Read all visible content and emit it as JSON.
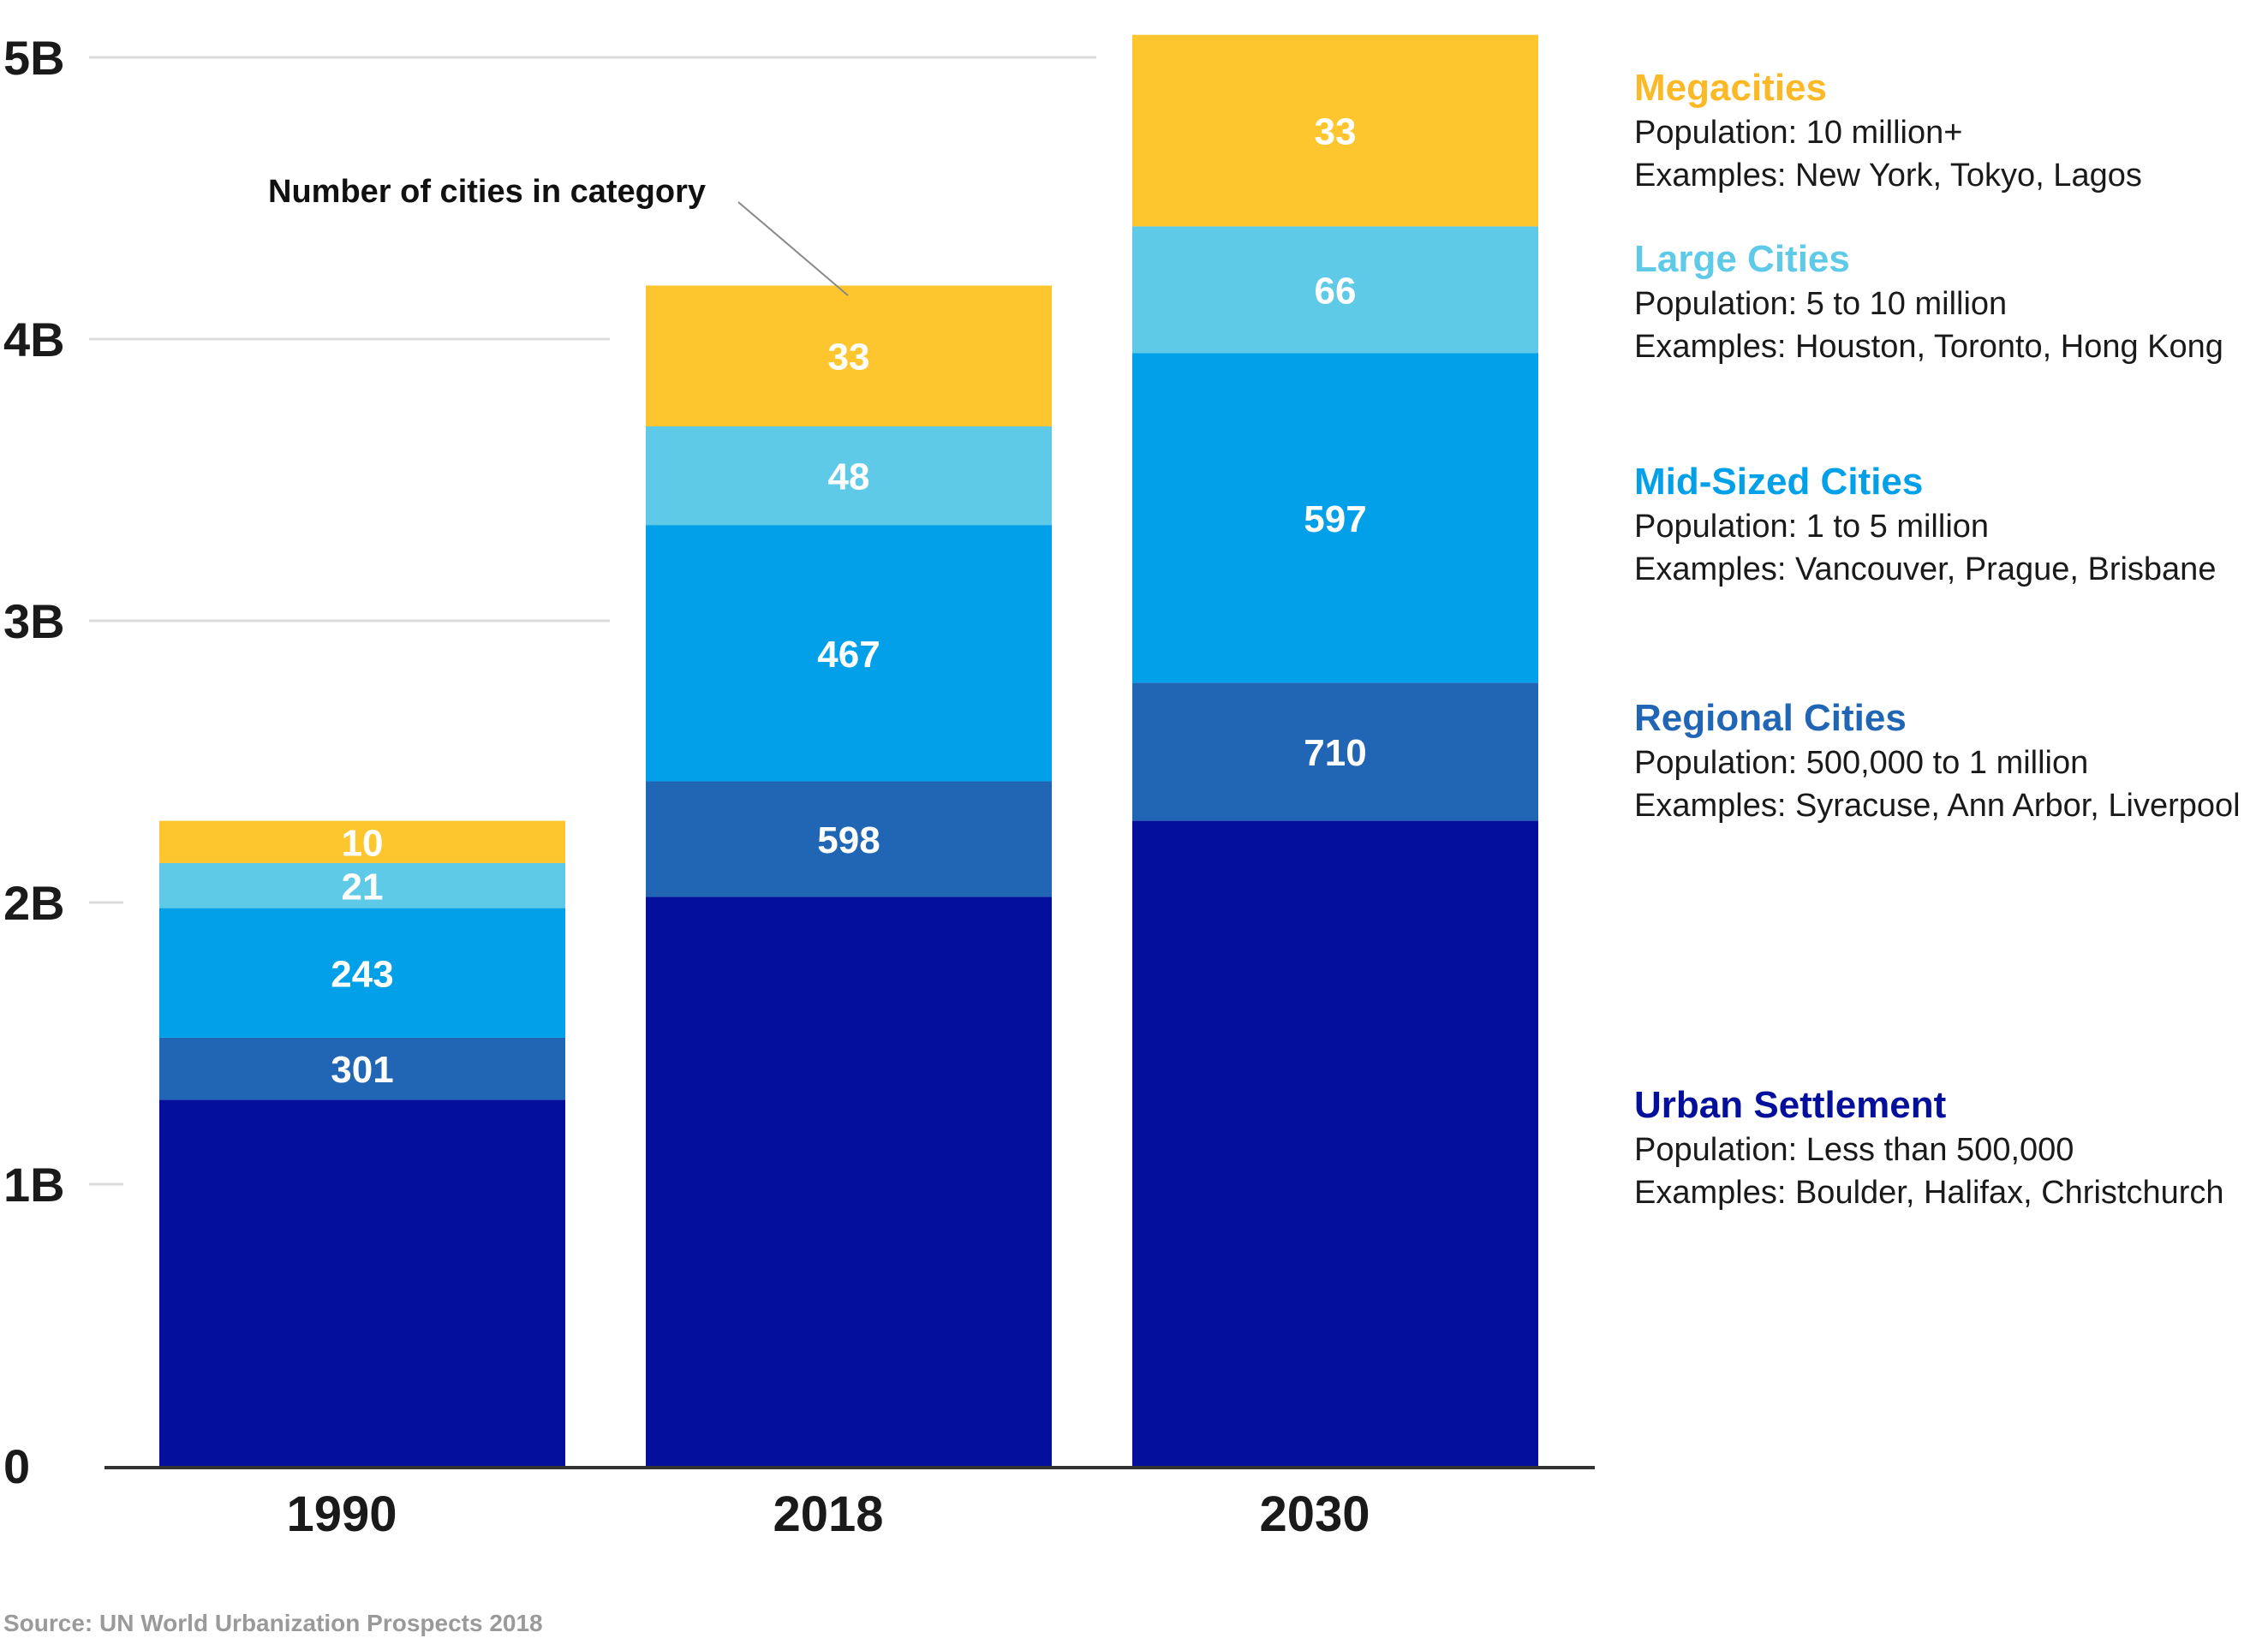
{
  "chart_data": {
    "type": "bar",
    "stacked": true,
    "categories": [
      "1990",
      "2018",
      "2030"
    ],
    "ylim": [
      0,
      5
    ],
    "yticks": [
      0,
      1,
      2,
      3,
      4,
      5
    ],
    "ytick_labels": [
      "0",
      "1B",
      "2B",
      "3B",
      "4B",
      "5B"
    ],
    "grid": true,
    "series": [
      {
        "name": "Urban Settlement",
        "color": "#040f9c",
        "values": [
          1.3,
          2.02,
          2.29
        ],
        "counts": [
          "",
          "",
          ""
        ]
      },
      {
        "name": "Regional Cities",
        "color": "#2166b5",
        "values": [
          0.22,
          0.41,
          0.49
        ],
        "counts": [
          "301",
          "598",
          "710"
        ]
      },
      {
        "name": "Mid-Sized Cities",
        "color": "#02a0e8",
        "values": [
          0.46,
          0.91,
          1.17
        ],
        "counts": [
          "243",
          "467",
          "597"
        ]
      },
      {
        "name": "Large Cities",
        "color": "#5ecae8",
        "values": [
          0.16,
          0.35,
          0.45
        ],
        "counts": [
          "21",
          "48",
          "66"
        ]
      },
      {
        "name": "Megacities",
        "color": "#fdc52e",
        "values": [
          0.15,
          0.5,
          0.68
        ],
        "counts": [
          "10",
          "33",
          "33"
        ]
      }
    ],
    "annotation": "Number of cities in category",
    "source": "Source: UN World Urbanization Prospects 2018"
  },
  "legend": [
    {
      "title": "Megacities",
      "color": "#fbb927",
      "population": "Population: 10 million+",
      "examples": "Examples: New York, Tokyo, Lagos"
    },
    {
      "title": "Large Cities",
      "color": "#5ecae8",
      "population": "Population:  5 to 10 million",
      "examples": "Examples: Houston, Toronto, Hong Kong"
    },
    {
      "title": "Mid-Sized Cities",
      "color": "#02a0e8",
      "population": "Population:  1 to 5 million",
      "examples": "Examples: Vancouver, Prague, Brisbane"
    },
    {
      "title": "Regional Cities",
      "color": "#2166b5",
      "population": "Population:  500,000 to 1 million",
      "examples": "Examples: Syracuse, Ann Arbor, Liverpool"
    },
    {
      "title": "Urban Settlement",
      "color": "#040f9c",
      "population": "Population:  Less than 500,000",
      "examples": "Examples: Boulder, Halifax, Christchurch"
    }
  ]
}
